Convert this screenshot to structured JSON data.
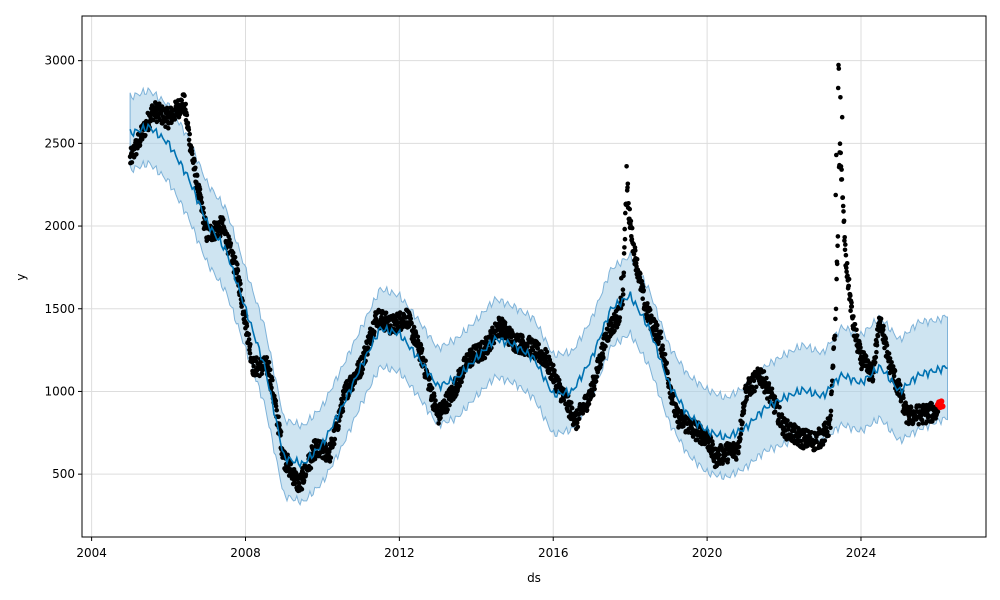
{
  "chart_data": {
    "type": "scatter",
    "title": "",
    "xlabel": "ds",
    "ylabel": "y",
    "xlim": [
      2003.75,
      2027.25
    ],
    "ylim": [
      120,
      3270
    ],
    "x_ticks": [
      2004,
      2008,
      2012,
      2016,
      2020,
      2024
    ],
    "y_ticks": [
      500,
      1000,
      1500,
      2000,
      2500,
      3000
    ],
    "grid": true,
    "legend": "none",
    "colors": {
      "observed": "#000000",
      "forecast_line": "#0072B2",
      "interval_fill": "#A6CDE6",
      "interval_edge": "#7FB3D9",
      "recent": "#FF0000",
      "grid": "#dddddd"
    },
    "series": [
      {
        "kind": "forecast",
        "x": [
          2005.0,
          2005.5,
          2006.0,
          2006.5,
          2007.0,
          2007.5,
          2008.0,
          2008.5,
          2009.0,
          2009.5,
          2010.0,
          2010.5,
          2011.0,
          2011.5,
          2012.0,
          2012.5,
          2013.0,
          2013.5,
          2014.0,
          2014.5,
          2015.0,
          2015.5,
          2016.0,
          2016.5,
          2017.0,
          2017.5,
          2018.0,
          2018.5,
          2019.0,
          2019.5,
          2020.0,
          2020.5,
          2021.0,
          2021.5,
          2022.0,
          2022.5,
          2023.0,
          2023.5,
          2024.0,
          2024.5,
          2025.0,
          2025.5,
          2026.0,
          2026.25
        ],
        "y": [
          2560,
          2600,
          2500,
          2300,
          2020,
          1850,
          1500,
          1150,
          600,
          560,
          680,
          900,
          1150,
          1380,
          1350,
          1200,
          1030,
          1080,
          1200,
          1320,
          1280,
          1200,
          980,
          1000,
          1200,
          1500,
          1580,
          1380,
          1050,
          860,
          760,
          720,
          780,
          900,
          960,
          1010,
          970,
          1100,
          1050,
          1150,
          1000,
          1100,
          1130,
          1150
        ],
        "lower": [
          2340,
          2380,
          2270,
          2060,
          1780,
          1600,
          1260,
          920,
          370,
          330,
          450,
          660,
          920,
          1150,
          1120,
          970,
          800,
          840,
          970,
          1090,
          1050,
          960,
          740,
          770,
          970,
          1270,
          1350,
          1150,
          820,
          620,
          510,
          480,
          540,
          640,
          680,
          740,
          700,
          800,
          760,
          840,
          700,
          770,
          820,
          840
        ],
        "upper": [
          2780,
          2820,
          2730,
          2540,
          2260,
          2100,
          1740,
          1390,
          830,
          790,
          910,
          1140,
          1380,
          1620,
          1580,
          1430,
          1260,
          1320,
          1430,
          1560,
          1510,
          1440,
          1220,
          1240,
          1440,
          1740,
          1820,
          1610,
          1280,
          1100,
          1010,
          960,
          1030,
          1150,
          1220,
          1280,
          1230,
          1390,
          1340,
          1450,
          1310,
          1420,
          1430,
          1460
        ]
      },
      {
        "kind": "observed",
        "x": [
          2005.0,
          2005.3,
          2005.6,
          2006.0,
          2006.4,
          2006.7,
          2007.0,
          2007.4,
          2007.8,
          2008.2,
          2008.6,
          2009.0,
          2009.4,
          2009.8,
          2010.2,
          2010.6,
          2011.0,
          2011.4,
          2011.8,
          2012.2,
          2012.6,
          2013.0,
          2013.4,
          2013.8,
          2014.2,
          2014.6,
          2015.0,
          2015.4,
          2015.8,
          2016.2,
          2016.6,
          2017.0,
          2017.4,
          2017.8,
          2017.9,
          2018.1,
          2018.4,
          2018.8,
          2019.2,
          2019.6,
          2020.0,
          2020.2,
          2020.5,
          2020.8,
          2021.0,
          2021.4,
          2021.7,
          2022.0,
          2022.4,
          2022.8,
          2023.0,
          2023.2,
          2023.35,
          2023.45,
          2023.6,
          2023.8,
          2024.0,
          2024.3,
          2024.5,
          2024.7,
          2025.0,
          2025.2,
          2025.5,
          2025.8,
          2026.0
        ],
        "y": [
          2400,
          2550,
          2700,
          2650,
          2750,
          2300,
          1950,
          2000,
          1700,
          1150,
          1150,
          600,
          430,
          650,
          630,
          1000,
          1150,
          1450,
          1400,
          1450,
          1200,
          850,
          1000,
          1200,
          1250,
          1400,
          1300,
          1270,
          1200,
          1000,
          820,
          1000,
          1350,
          1500,
          2200,
          1850,
          1500,
          1300,
          850,
          780,
          720,
          600,
          630,
          650,
          1000,
          1100,
          950,
          780,
          720,
          700,
          730,
          800,
          1500,
          2500,
          1800,
          1400,
          1200,
          1100,
          1450,
          1200,
          1000,
          850,
          860,
          870,
          880
        ]
      },
      {
        "kind": "recent",
        "x": [
          2026.0,
          2026.03,
          2026.06,
          2026.09,
          2026.12
        ],
        "y": [
          920,
          935,
          905,
          940,
          910
        ]
      }
    ]
  }
}
